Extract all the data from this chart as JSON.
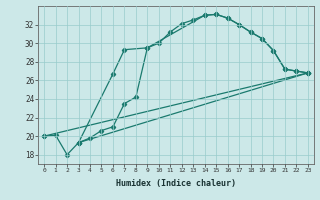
{
  "xlabel": "Humidex (Indice chaleur)",
  "ylabel": "",
  "bg_color": "#cce8e8",
  "line_color": "#1a7a6e",
  "xlim": [
    -0.5,
    23.5
  ],
  "ylim": [
    17.0,
    34.0
  ],
  "xticks": [
    0,
    1,
    2,
    3,
    4,
    5,
    6,
    7,
    8,
    9,
    10,
    11,
    12,
    13,
    14,
    15,
    16,
    17,
    18,
    19,
    20,
    21,
    22,
    23
  ],
  "yticks": [
    18,
    20,
    22,
    24,
    26,
    28,
    30,
    32
  ],
  "line1_x": [
    0,
    1,
    2,
    3,
    4,
    5,
    6,
    7,
    8,
    9,
    10,
    11,
    12,
    13,
    14,
    15,
    16,
    17,
    18,
    19,
    20,
    21,
    22,
    23
  ],
  "line1_y": [
    20.0,
    20.1,
    18.0,
    19.3,
    19.8,
    20.6,
    21.0,
    23.5,
    24.2,
    29.5,
    30.0,
    31.2,
    32.1,
    32.5,
    33.0,
    33.1,
    32.7,
    32.0,
    31.2,
    30.5,
    29.2,
    27.2,
    27.0,
    26.8
  ],
  "line2_x": [
    0,
    23
  ],
  "line2_y": [
    20.0,
    26.8
  ],
  "line3_x": [
    3,
    6,
    7,
    9,
    14,
    15,
    16,
    17,
    18,
    19,
    20,
    21,
    22,
    23
  ],
  "line3_y": [
    19.3,
    26.7,
    29.3,
    29.5,
    33.0,
    33.1,
    32.7,
    32.0,
    31.2,
    30.5,
    29.2,
    27.2,
    27.0,
    26.8
  ],
  "line4_x": [
    3,
    23
  ],
  "line4_y": [
    19.3,
    26.8
  ]
}
